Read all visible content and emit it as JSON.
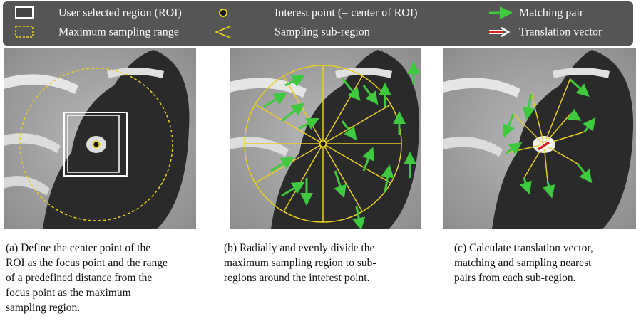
{
  "legend": [
    {
      "label": "User selected region (ROI)"
    },
    {
      "label": "Maximum sampling range"
    },
    {
      "label": "Interest point (= center of ROI)"
    },
    {
      "label": "Sampling sub-region"
    },
    {
      "label": "Matching pair"
    },
    {
      "label": "Translation vector"
    }
  ],
  "panels": [
    {
      "caption": [
        "(a) Define the center point of the",
        "ROI as the focus point and the range",
        "of a predefined distance from the",
        "focus point as the maximum",
        "sampling region."
      ]
    },
    {
      "caption": [
        "(b) Radially and evenly divide the",
        "maximum sampling region to sub-",
        "regions around the interest point."
      ]
    },
    {
      "caption": [
        "(c) Calculate translation vector,",
        "matching and sampling nearest",
        "pairs from each sub-region."
      ]
    }
  ]
}
